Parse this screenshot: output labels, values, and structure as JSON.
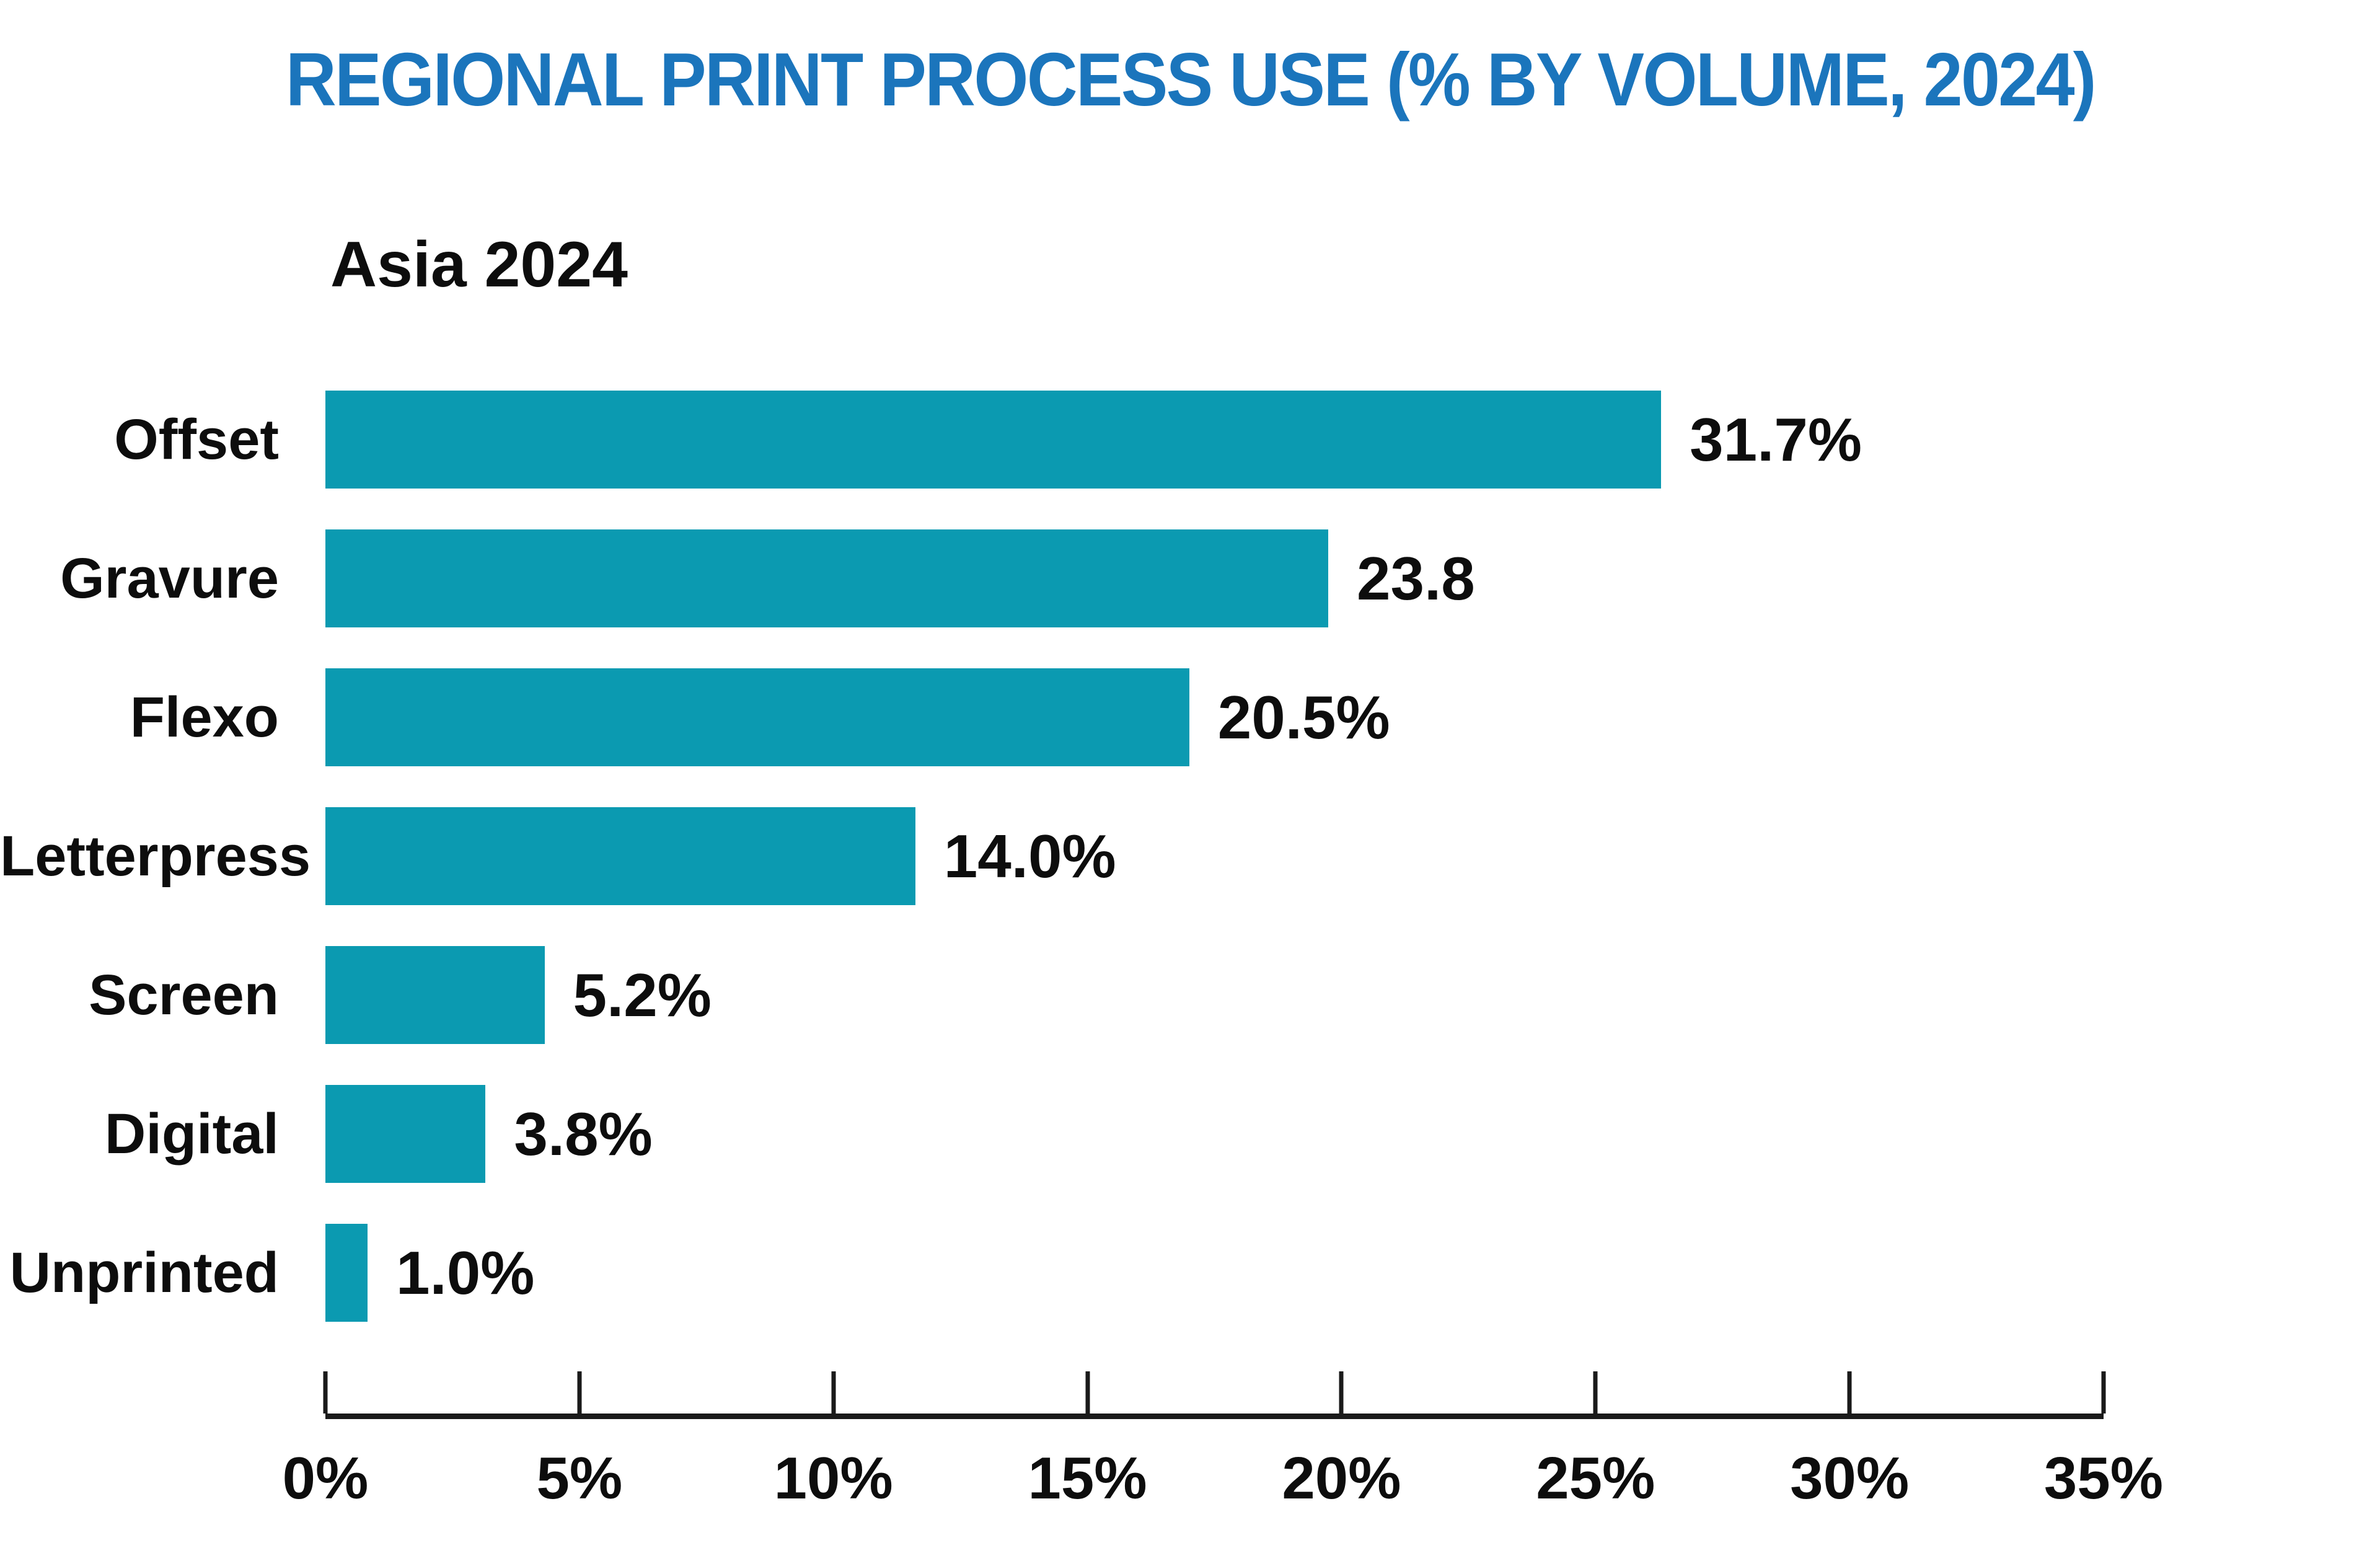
{
  "chart_data": {
    "type": "bar",
    "orientation": "horizontal",
    "title": "REGIONAL PRINT PROCESS USE (% BY VOLUME, 2024)",
    "subtitle": "Asia 2024",
    "categories": [
      "Offset",
      "Gravure",
      "Flexo",
      "Letterpress",
      "Screen",
      "Digital",
      "Unprinted"
    ],
    "values": [
      31.7,
      23.8,
      20.5,
      14.0,
      5.2,
      3.8,
      1.0
    ],
    "value_labels": [
      "31.7%",
      "23.8",
      "20.5%",
      "14.0%",
      "5.2%",
      "3.8%",
      "1.0%"
    ],
    "xlabel": "",
    "ylabel": "",
    "axis": {
      "min": 0,
      "max": 35,
      "step": 5,
      "tick_labels": [
        "0%",
        "5%",
        "10%",
        "15%",
        "20%",
        "25%",
        "30%",
        "35%"
      ]
    },
    "bar_axis_max": 42.2,
    "grid": "off",
    "legend": "none",
    "colors": {
      "bar": "#0b9ab1",
      "title": "#1b75bc",
      "axis": "#1a1a1a",
      "text": "#0d0d0d",
      "background": "#ffffff"
    }
  }
}
